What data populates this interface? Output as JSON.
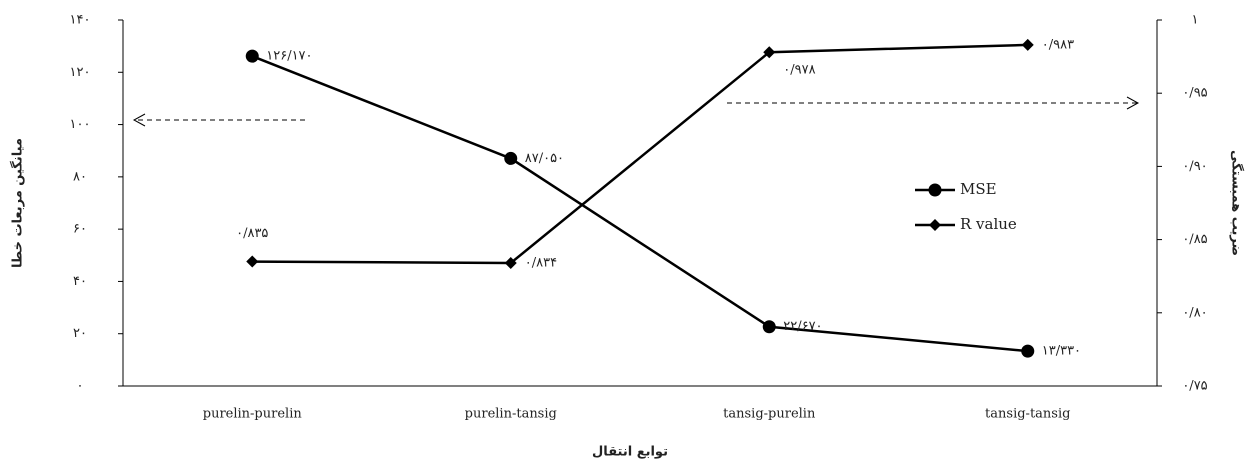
{
  "chart_data": {
    "type": "line",
    "categories": [
      "purelin-purelin",
      "purelin-tansig",
      "tansig-purelin",
      "tansig-tansig"
    ],
    "x_label": "توابع انتقال",
    "y_label": "میانگین مربعات خطا",
    "y2_label": "ضریب همبستگی",
    "series": [
      {
        "name": "MSE",
        "color": "#000000",
        "marker": "circle",
        "values": [
          126.17,
          87.05,
          22.67,
          13.33
        ],
        "value_labels": [
          "۱۲۶/۱۷۰",
          "۸۷/۰۵۰",
          "۲۲/۶۷۰",
          "۱۳/۳۳۰"
        ]
      },
      {
        "name": "R value",
        "color": "#000000",
        "marker": "diamond",
        "axis": "y2",
        "values": [
          0.835,
          0.834,
          0.978,
          0.983
        ],
        "value_labels": [
          "۰/۸۳۵",
          "۰/۸۳۴",
          "۰/۹۷۸",
          "۰/۹۸۳"
        ]
      }
    ],
    "ylim": [
      0,
      140
    ],
    "yticks": [
      {
        "value": 0,
        "label": "۰"
      },
      {
        "value": 20,
        "label": "۲۰"
      },
      {
        "value": 40,
        "label": "۴۰"
      },
      {
        "value": 60,
        "label": "۶۰"
      },
      {
        "value": 80,
        "label": "۸۰"
      },
      {
        "value": 100,
        "label": "۱۰۰"
      },
      {
        "value": 120,
        "label": "۱۲۰"
      },
      {
        "value": 140,
        "label": "۱۴۰"
      }
    ],
    "y2lim": [
      0.75,
      1
    ],
    "y2ticks": [
      {
        "value": 0.75,
        "label": "۰/۷۵"
      },
      {
        "value": 0.8,
        "label": "۰/۸۰"
      },
      {
        "value": 0.85,
        "label": "۰/۸۵"
      },
      {
        "value": 0.9,
        "label": "۰/۹۰"
      },
      {
        "value": 0.95,
        "label": "۰/۹۵"
      },
      {
        "value": 1,
        "label": "۱"
      }
    ],
    "grid": false,
    "legend": "right"
  }
}
